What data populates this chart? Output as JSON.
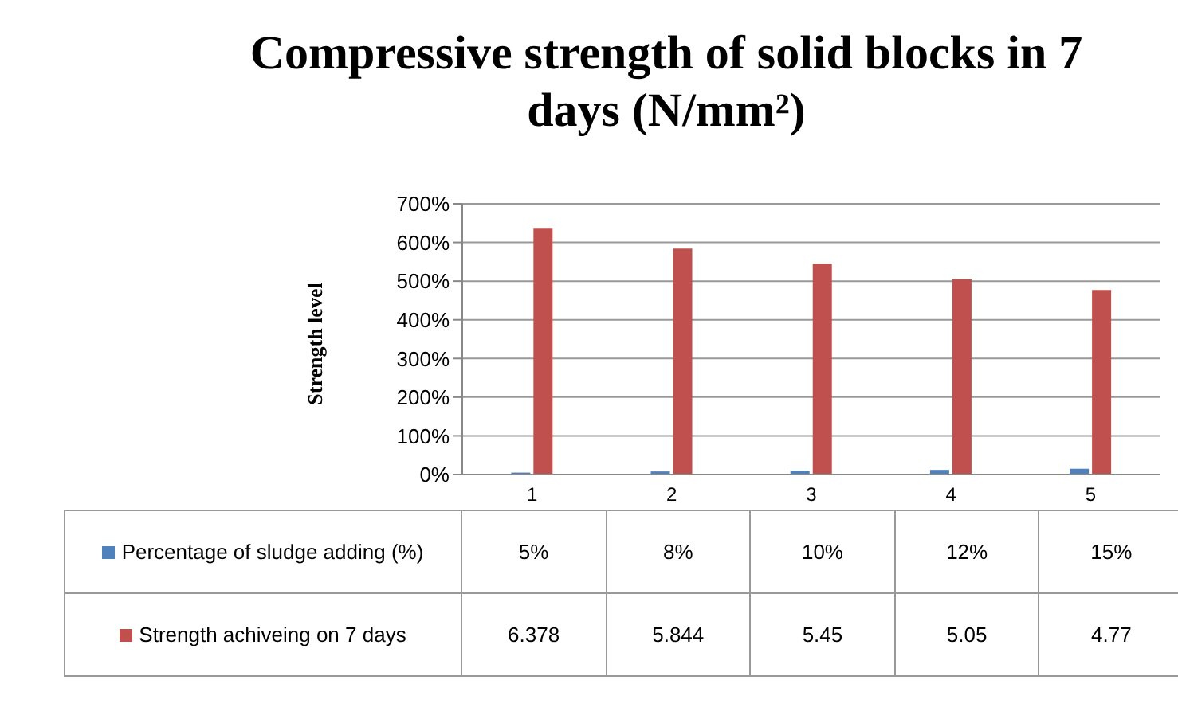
{
  "chart_data": {
    "type": "bar",
    "title": "Compressive strength of solid blocks in 7 days (N/mm²)",
    "ylabel": "Strength level",
    "categories": [
      "1",
      "2",
      "3",
      "4",
      "5"
    ],
    "series": [
      {
        "name": "Percentage of sludge adding (%)",
        "color": "#4f81bd",
        "values": [
          0.05,
          0.08,
          0.1,
          0.12,
          0.15
        ],
        "value_labels": [
          "5%",
          "8%",
          "10%",
          "12%",
          "15%"
        ]
      },
      {
        "name": "Strength achiveing on 7 days",
        "color": "#c0504d",
        "values": [
          6.378,
          5.844,
          5.45,
          5.05,
          4.77
        ],
        "value_labels": [
          "6.378",
          "5.844",
          "5.45",
          "5.05",
          "4.77"
        ]
      }
    ],
    "ylim": [
      0,
      7
    ],
    "yticks": [
      {
        "value": 0,
        "label": "0%"
      },
      {
        "value": 1,
        "label": "100%"
      },
      {
        "value": 2,
        "label": "200%"
      },
      {
        "value": 3,
        "label": "300%"
      },
      {
        "value": 4,
        "label": "400%"
      },
      {
        "value": 5,
        "label": "500%"
      },
      {
        "value": 6,
        "label": "600%"
      },
      {
        "value": 7,
        "label": "700%"
      }
    ],
    "grid": "y",
    "legend": "bottom"
  }
}
